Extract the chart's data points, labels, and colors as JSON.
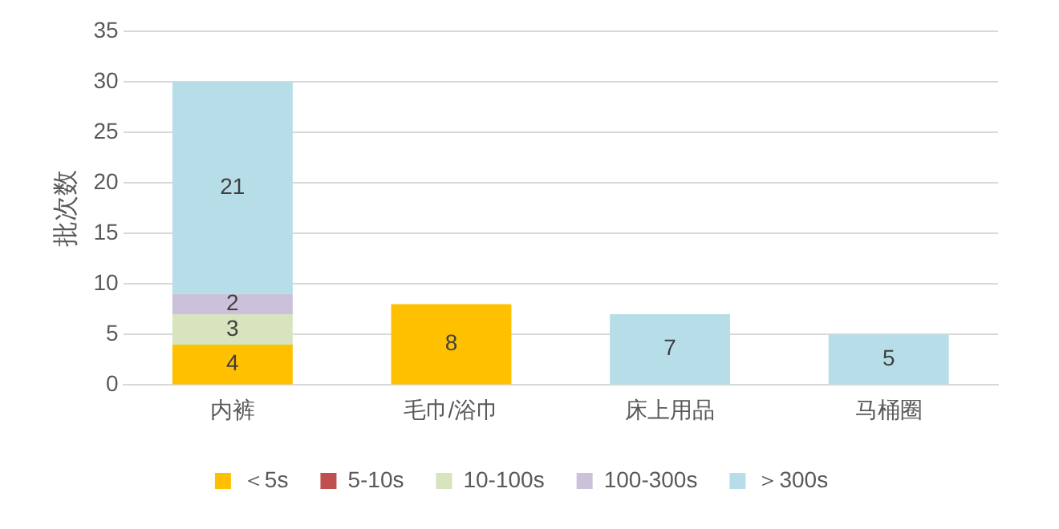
{
  "chart_data": {
    "type": "bar",
    "stacked": true,
    "ylabel": "批次数",
    "categories": [
      "内裤",
      "毛巾/浴巾",
      "床上用品",
      "马桶圈"
    ],
    "series": [
      {
        "name": "＜5s",
        "color": "#ffc000",
        "values": [
          4,
          8,
          0,
          0
        ],
        "value_labels": [
          "4",
          "8",
          null,
          null
        ]
      },
      {
        "name": "5-10s",
        "color": "#c0504d",
        "values": [
          0,
          0,
          0,
          0
        ],
        "value_labels": [
          null,
          null,
          null,
          null
        ]
      },
      {
        "name": "10-100s",
        "color": "#d7e4bd",
        "values": [
          3,
          0,
          0,
          0
        ],
        "value_labels": [
          "3",
          null,
          null,
          null
        ]
      },
      {
        "name": "100-300s",
        "color": "#ccc1da",
        "values": [
          2,
          0,
          0,
          0
        ],
        "value_labels": [
          "2",
          null,
          null,
          null
        ]
      },
      {
        "name": "＞300s",
        "color": "#b7dee8",
        "values": [
          21,
          0,
          7,
          5
        ],
        "value_labels": [
          "21",
          null,
          "7",
          "5"
        ]
      }
    ],
    "ylim": [
      0,
      35
    ],
    "yticks": [
      0,
      5,
      10,
      15,
      20,
      25,
      30,
      35
    ],
    "grid": "y",
    "legend": "bottom"
  }
}
